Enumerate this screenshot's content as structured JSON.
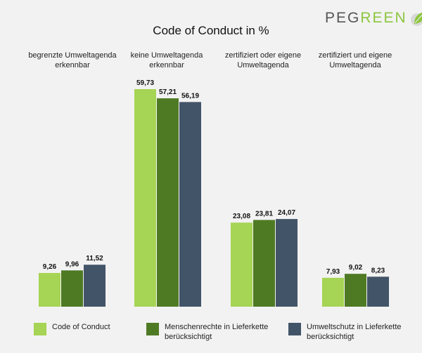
{
  "logo": {
    "part1": "PEG",
    "part2": "REEN"
  },
  "chart_data": {
    "type": "bar",
    "title": "Code of Conduct in %",
    "categories": [
      "begrenzte Umweltagenda erkennbar",
      "keine Umweltagenda erkennbar",
      "zertifiziert oder eigene Umweltagenda",
      "zertifiziert und eigene Umweltagenda"
    ],
    "category_label_lines": [
      [
        "begrenzte Umweltagenda",
        "erkennbar"
      ],
      [
        "keine Umweltagenda",
        "erkennbar"
      ],
      [
        "zertifiziert oder eigene",
        "Umweltagenda"
      ],
      [
        "zertifiziert und eigene",
        "Umweltagenda"
      ]
    ],
    "series": [
      {
        "name": "Code of Conduct",
        "color": "#a6d454",
        "values": [
          9.26,
          59.73,
          23.08,
          7.93
        ],
        "labels": [
          "9,26",
          "59,73",
          "23,08",
          "7,93"
        ]
      },
      {
        "name": "Menschenrechte in Lieferkette berücksichtigt",
        "color": "#4f7a24",
        "values": [
          9.96,
          57.21,
          23.81,
          9.02
        ],
        "labels": [
          "9,96",
          "57,21",
          "23,81",
          "9,02"
        ]
      },
      {
        "name": "Umweltschutz in Lieferkette berücksichtigt",
        "color": "#425468",
        "values": [
          11.52,
          56.19,
          24.07,
          8.23
        ],
        "labels": [
          "11,52",
          "56,19",
          "24,07",
          "8,23"
        ]
      }
    ],
    "legend_lines": [
      [
        "Code of Conduct"
      ],
      [
        "Menschenrechte in Lieferkette",
        "berücksichtigt"
      ],
      [
        "Umweltschutz in Lieferkette",
        "berücksichtigt"
      ]
    ],
    "ylim": [
      0,
      60
    ],
    "legend_position": "bottom",
    "grid": false
  }
}
